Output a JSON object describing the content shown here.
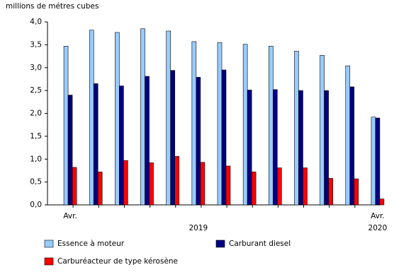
{
  "chart_data": {
    "type": "bar",
    "title": "millions de métres cubes",
    "categories": [
      "Avr.",
      null,
      null,
      null,
      null,
      null,
      null,
      null,
      null,
      null,
      null,
      null,
      "Avr."
    ],
    "year_labels": [
      "2019",
      "2020"
    ],
    "series": [
      {
        "name": "Essence à moteur",
        "color": "#99ccff",
        "values": [
          3.47,
          3.82,
          3.77,
          3.85,
          3.8,
          3.57,
          3.55,
          3.51,
          3.47,
          3.36,
          3.27,
          3.04,
          1.92
        ]
      },
      {
        "name": "Carburant diesel",
        "color": "#000080",
        "values": [
          2.4,
          2.65,
          2.6,
          2.81,
          2.94,
          2.79,
          2.95,
          2.51,
          2.52,
          2.5,
          2.5,
          2.58,
          1.9
        ]
      },
      {
        "name": "Carburéacteur de type kérosène",
        "color": "#ff0000",
        "values": [
          0.82,
          0.72,
          0.97,
          0.92,
          1.06,
          0.93,
          0.85,
          0.72,
          0.81,
          0.81,
          0.58,
          0.57,
          0.13
        ]
      }
    ],
    "ylim": [
      0,
      4
    ],
    "yticks": [
      {
        "value": 0,
        "label": "0,0"
      },
      {
        "value": 0.5,
        "label": "0,5"
      },
      {
        "value": 1,
        "label": "1,0"
      },
      {
        "value": 1.5,
        "label": "1,5"
      },
      {
        "value": 2,
        "label": "2,0"
      },
      {
        "value": 2.5,
        "label": "2,5"
      },
      {
        "value": 3,
        "label": "3,0"
      },
      {
        "value": 3.5,
        "label": "3,5"
      },
      {
        "value": 4,
        "label": "4,0"
      }
    ],
    "grid": false
  }
}
